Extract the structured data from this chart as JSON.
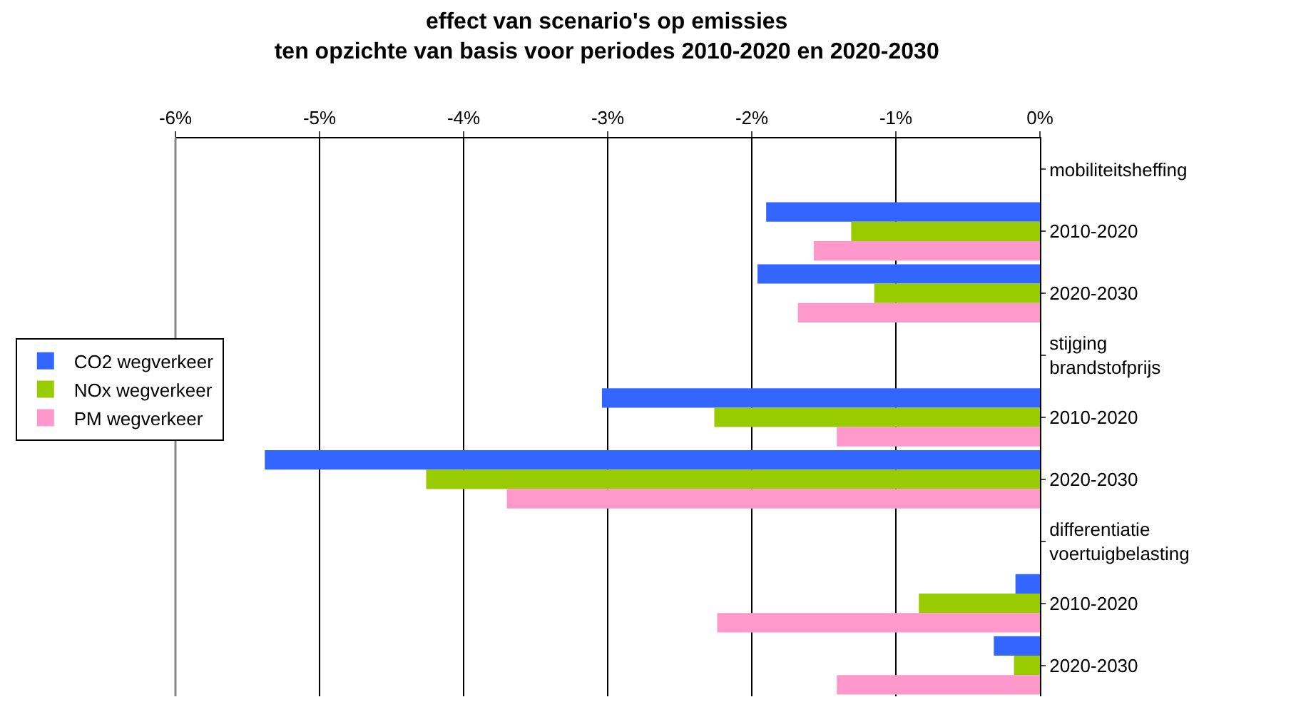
{
  "chart_data": {
    "type": "bar",
    "orientation": "horizontal",
    "title": "effect van scenario's op emissies\nten opzichte van basis voor periodes 2010-2020 en 2020-2030",
    "categories": [
      "mobiliteitsheffing",
      "2010-2020",
      "2020-2030",
      "stijging brandstofprijs",
      "2010-2020",
      "2020-2030",
      "differentiatie voertuigbelasting",
      "2010-2020",
      "2020-2030"
    ],
    "series": [
      {
        "name": "CO2 wegverkeer",
        "color": "#3366ff",
        "values": [
          null,
          -1.9,
          -1.96,
          null,
          -3.04,
          -5.38,
          null,
          -0.17,
          -0.32
        ]
      },
      {
        "name": "NOx wegverkeer",
        "color": "#99cc00",
        "values": [
          null,
          -1.31,
          -1.15,
          null,
          -2.26,
          -4.26,
          null,
          -0.84,
          -0.18
        ]
      },
      {
        "name": "PM wegverkeer",
        "color": "#ff99cc",
        "values": [
          null,
          -1.57,
          -1.68,
          null,
          -1.41,
          -3.7,
          null,
          -2.24,
          -1.41
        ]
      }
    ],
    "xlim": [
      -6,
      0
    ],
    "xticks": [
      {
        "value": -6,
        "label": "-6%"
      },
      {
        "value": -5,
        "label": "-5%"
      },
      {
        "value": -4,
        "label": "-4%"
      },
      {
        "value": -3,
        "label": "-3%"
      },
      {
        "value": -2,
        "label": "-2%"
      },
      {
        "value": -1,
        "label": "-1%"
      },
      {
        "value": 0,
        "label": "0%"
      }
    ],
    "grid": "x",
    "legend": "left"
  }
}
